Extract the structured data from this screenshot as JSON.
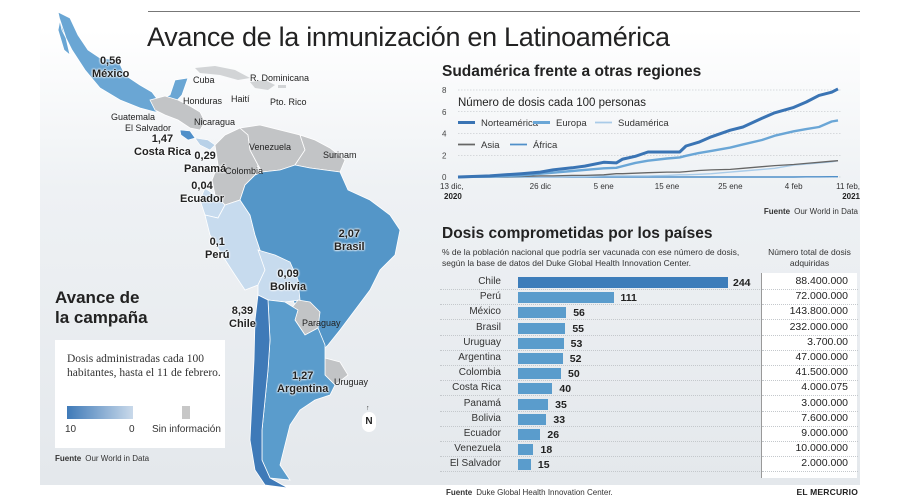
{
  "title": "Avance de la inmunización en Latinoamérica",
  "map": {
    "legend": {
      "title_line1": "Avance de",
      "title_line2": "la campaña",
      "description": "Dosis administradas cada 100 habitantes, hasta el 11 de febrero.",
      "scale_max": "10",
      "scale_min": "0",
      "no_info": "Sin información"
    },
    "source_label": "Fuente",
    "source": "Our World in Data",
    "countries_with_data": [
      {
        "name": "México",
        "value": "0,56"
      },
      {
        "name": "Costa Rica",
        "value": "1,47"
      },
      {
        "name": "Panamá",
        "value": "0,29"
      },
      {
        "name": "Ecuador",
        "value": "0,04"
      },
      {
        "name": "Perú",
        "value": "0,1"
      },
      {
        "name": "Brasil",
        "value": "2,07"
      },
      {
        "name": "Bolivia",
        "value": "0,09"
      },
      {
        "name": "Chile",
        "value": "8,39"
      },
      {
        "name": "Argentina",
        "value": "1,27"
      }
    ],
    "countries_no_data": [
      "Cuba",
      "R. Dominicana",
      "Haití",
      "Pto. Rico",
      "Honduras",
      "Guatemala",
      "El Salvador",
      "Nicaragua",
      "Venezuela",
      "Colombia",
      "Surinam",
      "Paraguay",
      "Uruguay"
    ],
    "compass": "N",
    "colors": {
      "scale_high": "#3f7ab8",
      "scale_low": "#c9d9ea",
      "no_info": "#c7c7c7"
    }
  },
  "chart_data": [
    {
      "type": "line",
      "title": "Sudamérica frente a otras regiones",
      "subtitle": "Número de dosis cada 100 personas",
      "xlabel": "",
      "ylabel": "",
      "ylim": [
        0,
        8
      ],
      "yticks": [
        "0",
        "2",
        "4",
        "6",
        "8"
      ],
      "xticks": [
        {
          "label": "13 dic,",
          "sub": "2020",
          "day": 0
        },
        {
          "label": "26 dic",
          "sub": "",
          "day": 13
        },
        {
          "label": "5 ene",
          "sub": "",
          "day": 23
        },
        {
          "label": "15 ene",
          "sub": "",
          "day": 33
        },
        {
          "label": "25 ene",
          "sub": "",
          "day": 43
        },
        {
          "label": "4 feb",
          "sub": "",
          "day": 53
        },
        {
          "label": "11 feb,",
          "sub": "2021",
          "day": 60
        }
      ],
      "x": [
        0,
        5,
        10,
        13,
        15,
        18,
        20,
        23,
        25,
        26,
        28,
        30,
        33,
        35,
        36,
        38,
        40,
        43,
        45,
        48,
        50,
        53,
        55,
        57,
        59,
        60
      ],
      "series": [
        {
          "name": "Norteamérica",
          "color": "#3a74b4",
          "values": [
            0.0,
            0.1,
            0.3,
            0.45,
            0.65,
            0.85,
            1.0,
            1.35,
            1.3,
            1.65,
            1.9,
            2.3,
            2.3,
            2.3,
            2.85,
            3.2,
            3.7,
            4.3,
            4.6,
            5.4,
            5.9,
            6.4,
            6.9,
            7.5,
            7.8,
            8.1
          ]
        },
        {
          "name": "Europa",
          "color": "#6aa6d6",
          "values": [
            0.0,
            0.05,
            0.15,
            0.3,
            0.4,
            0.55,
            0.65,
            0.8,
            0.85,
            1.0,
            1.3,
            1.5,
            1.7,
            1.8,
            1.95,
            2.2,
            2.4,
            2.7,
            3.0,
            3.4,
            3.8,
            4.2,
            4.4,
            4.6,
            5.1,
            5.2
          ]
        },
        {
          "name": "Sudamérica",
          "color": "#a9cbe8",
          "values": [
            0.0,
            0.0,
            0.0,
            0.0,
            0.0,
            0.05,
            0.05,
            0.1,
            0.1,
            0.1,
            0.1,
            0.1,
            0.15,
            0.2,
            0.2,
            0.25,
            0.3,
            0.45,
            0.55,
            0.7,
            0.8,
            1.1,
            1.2,
            1.3,
            1.4,
            1.5
          ]
        },
        {
          "name": "Asia",
          "color": "#666666",
          "values": [
            0.0,
            0.0,
            0.05,
            0.1,
            0.1,
            0.15,
            0.15,
            0.2,
            0.3,
            0.3,
            0.35,
            0.4,
            0.45,
            0.45,
            0.5,
            0.6,
            0.65,
            0.7,
            0.8,
            0.95,
            1.05,
            1.15,
            1.25,
            1.35,
            1.45,
            1.5
          ]
        },
        {
          "name": "África",
          "color": "#4f8fc9",
          "values": [
            0.0,
            0.0,
            0.0,
            0.0,
            0.0,
            0.0,
            0.0,
            0.0,
            0.0,
            0.0,
            0.0,
            0.0,
            0.0,
            0.0,
            0.0,
            0.0,
            0.0,
            0.0,
            0.0,
            0.0,
            0.0,
            0.0,
            0.02,
            0.02,
            0.03,
            0.03
          ]
        }
      ],
      "grid": true,
      "legend_position": "top-left",
      "source_label": "Fuente",
      "source": "Our World in Data"
    },
    {
      "type": "bar",
      "orientation": "horizontal",
      "title": "Dosis comprometidas por los países",
      "subtitle": "% de la población nacional que podría ser vacunada con ese número de dosis, según la base de datos del Duke Global Health Innovation Center.",
      "column_header": "Número total de dosis adquiridas",
      "categories": [
        "Chile",
        "Perú",
        "México",
        "Brasil",
        "Uruguay",
        "Argentina",
        "Colombia",
        "Costa Rica",
        "Panamá",
        "Bolivia",
        "Ecuador",
        "Venezuela",
        "El Salvador"
      ],
      "values": [
        244,
        111,
        56,
        55,
        53,
        52,
        50,
        40,
        35,
        33,
        26,
        18,
        15
      ],
      "totals": [
        "88.400.000",
        "72.000.000",
        "143.800.000",
        "232.000.000",
        "3.700.00",
        "47.000.000",
        "41.500.000",
        "4.000.075",
        "3.000.000",
        "7.600.000",
        "9.000.000",
        "10.000.000",
        "2.000.000"
      ],
      "xlim": [
        0,
        244
      ],
      "highlight": "Chile",
      "colors": {
        "bar": "#5a9ccc",
        "highlight": "#3d7dba"
      },
      "source_label": "Fuente",
      "source": "Duke Global Health Innovation Center."
    }
  ],
  "brand": "EL MERCURIO"
}
